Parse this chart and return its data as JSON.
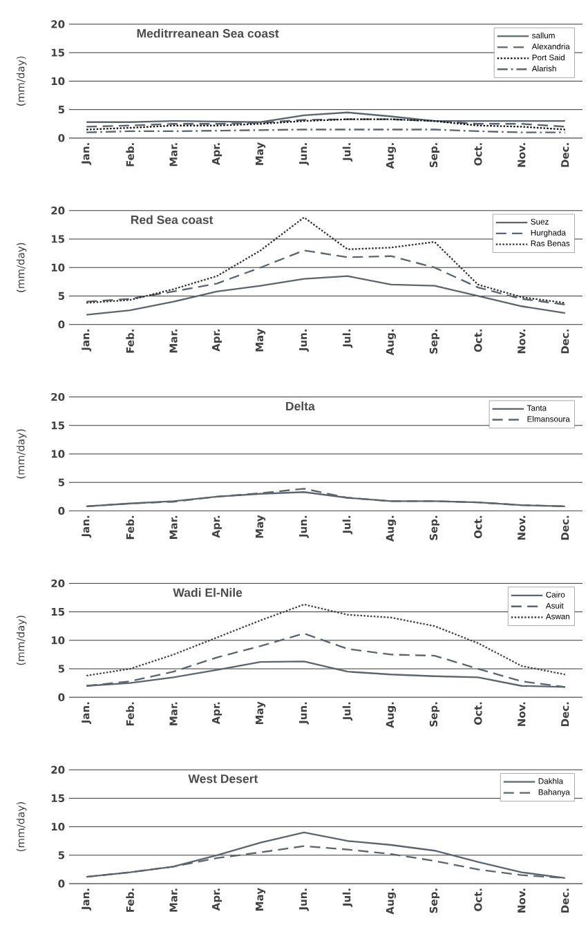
{
  "chart_data": [
    {
      "type": "line",
      "title": "Meditrreanean Sea coast",
      "ylabel": "(mm/day)",
      "categories": [
        "Jan.",
        "Feb.",
        "Mar.",
        "Apr.",
        "May",
        "Jun.",
        "Jul.",
        "Aug.",
        "Sep.",
        "Oct.",
        "Nov.",
        "Dec."
      ],
      "ylim": [
        0,
        20
      ],
      "yticks": [
        0,
        5,
        10,
        15,
        20
      ],
      "grid": "y",
      "legend": "top right",
      "marker": "none",
      "series": [
        {
          "name": "sallum",
          "color": "#5a6570",
          "line_style": "solid",
          "values": [
            2.8,
            2.8,
            3.0,
            2.9,
            2.8,
            4.0,
            4.5,
            3.8,
            3.0,
            3.0,
            3.0,
            3.0
          ]
        },
        {
          "name": "Alexandria",
          "color": "#5a6570",
          "line_style": "dashed",
          "values": [
            2.0,
            2.2,
            2.5,
            2.5,
            2.7,
            3.2,
            3.3,
            3.3,
            3.0,
            2.5,
            2.5,
            2.0
          ]
        },
        {
          "name": "Port Said",
          "color": "#111111",
          "line_style": "dotted",
          "values": [
            1.5,
            1.8,
            2.2,
            2.2,
            2.5,
            3.0,
            3.3,
            3.3,
            3.0,
            2.2,
            2.0,
            1.5
          ]
        },
        {
          "name": "Alarish",
          "color": "#5a6570",
          "line_style": "dashdot",
          "values": [
            1.0,
            1.2,
            1.2,
            1.3,
            1.4,
            1.5,
            1.5,
            1.5,
            1.5,
            1.2,
            1.0,
            1.0
          ]
        }
      ]
    },
    {
      "type": "line",
      "title": "Red Sea coast",
      "ylabel": "(mm/day)",
      "categories": [
        "Jan.",
        "Feb.",
        "Mar.",
        "Apr.",
        "May",
        "Jun.",
        "Jul.",
        "Aug.",
        "Sep.",
        "Oct.",
        "Nov.",
        "Dec."
      ],
      "ylim": [
        0,
        20
      ],
      "yticks": [
        0,
        5,
        10,
        15,
        20
      ],
      "grid": "y",
      "legend": "top right",
      "marker": "none",
      "series": [
        {
          "name": "Suez",
          "color": "#5a6570",
          "line_style": "solid",
          "values": [
            1.7,
            2.5,
            4.0,
            5.8,
            6.8,
            8.0,
            8.5,
            7.0,
            6.8,
            5.0,
            3.2,
            2.0
          ]
        },
        {
          "name": "Hurghada",
          "color": "#5a6570",
          "line_style": "dashed",
          "values": [
            4.0,
            4.5,
            5.8,
            7.2,
            10.0,
            13.0,
            11.8,
            12.0,
            10.0,
            6.5,
            4.5,
            3.5
          ]
        },
        {
          "name": "Ras Benas",
          "color": "#333333",
          "line_style": "dotted",
          "values": [
            3.8,
            4.3,
            6.2,
            8.5,
            13.0,
            18.8,
            13.2,
            13.5,
            14.5,
            7.0,
            4.8,
            3.8
          ]
        }
      ]
    },
    {
      "type": "line",
      "title": "Delta",
      "ylabel": "(mm/day)",
      "categories": [
        "Jan.",
        "Feb.",
        "Mar.",
        "Apr.",
        "May",
        "Jun.",
        "Jul.",
        "Aug.",
        "Sep.",
        "Oct.",
        "Nov.",
        "Dec."
      ],
      "ylim": [
        0,
        20
      ],
      "yticks": [
        0,
        5,
        10,
        15,
        20
      ],
      "grid": "y",
      "legend": "top right",
      "marker": "none",
      "series": [
        {
          "name": "Tanta",
          "color": "#5a6570",
          "line_style": "solid",
          "values": [
            0.8,
            1.3,
            1.7,
            2.5,
            3.0,
            3.3,
            2.3,
            1.7,
            1.7,
            1.5,
            1.0,
            0.8
          ]
        },
        {
          "name": "Elmansoura",
          "color": "#5a6570",
          "line_style": "dashed",
          "values": [
            0.8,
            1.3,
            1.6,
            2.5,
            3.1,
            3.9,
            2.3,
            1.7,
            1.7,
            1.5,
            1.0,
            0.8
          ]
        }
      ]
    },
    {
      "type": "line",
      "title": "Wadi El-Nile",
      "ylabel": "(mm/day)",
      "categories": [
        "Jan.",
        "Feb.",
        "Mar.",
        "Apr.",
        "May",
        "Jun.",
        "Jul.",
        "Aug.",
        "Sep.",
        "Oct.",
        "Nov.",
        "Dec."
      ],
      "ylim": [
        0,
        20
      ],
      "yticks": [
        0,
        5,
        10,
        15,
        20
      ],
      "grid": "y",
      "legend": "top right",
      "marker": "none",
      "series": [
        {
          "name": "Cairo",
          "color": "#5a6570",
          "line_style": "solid",
          "values": [
            2.0,
            2.5,
            3.5,
            4.8,
            6.2,
            6.3,
            4.5,
            4.0,
            3.7,
            3.5,
            2.0,
            1.8
          ]
        },
        {
          "name": "Asuit",
          "color": "#5a6570",
          "line_style": "dashed",
          "values": [
            2.0,
            2.8,
            4.5,
            7.0,
            9.0,
            11.2,
            8.5,
            7.5,
            7.3,
            5.0,
            2.8,
            1.8
          ]
        },
        {
          "name": "Aswan",
          "color": "#444444",
          "line_style": "dotted",
          "values": [
            3.8,
            5.0,
            7.5,
            10.5,
            13.5,
            16.3,
            14.5,
            14.0,
            12.5,
            9.5,
            5.5,
            4.0
          ]
        }
      ]
    },
    {
      "type": "line",
      "title": "West Desert",
      "ylabel": "(mm/day)",
      "categories": [
        "Jan.",
        "Feb.",
        "Mar.",
        "Apr.",
        "May",
        "Jun.",
        "Jul.",
        "Aug.",
        "Sep.",
        "Oct.",
        "Nov.",
        "Dec."
      ],
      "ylim": [
        0,
        20
      ],
      "yticks": [
        0,
        5,
        10,
        15,
        20
      ],
      "grid": "y",
      "legend": "top right",
      "marker": "none",
      "series": [
        {
          "name": "Dakhla",
          "color": "#5a6570",
          "line_style": "solid",
          "values": [
            1.2,
            2.0,
            3.0,
            5.0,
            7.2,
            9.0,
            7.5,
            6.8,
            5.8,
            3.8,
            2.0,
            1.0
          ]
        },
        {
          "name": "Bahanya",
          "color": "#5a6570",
          "line_style": "dashed",
          "values": [
            1.2,
            2.0,
            3.0,
            4.5,
            5.5,
            6.6,
            6.0,
            5.2,
            4.0,
            2.5,
            1.5,
            1.0
          ]
        }
      ]
    }
  ]
}
